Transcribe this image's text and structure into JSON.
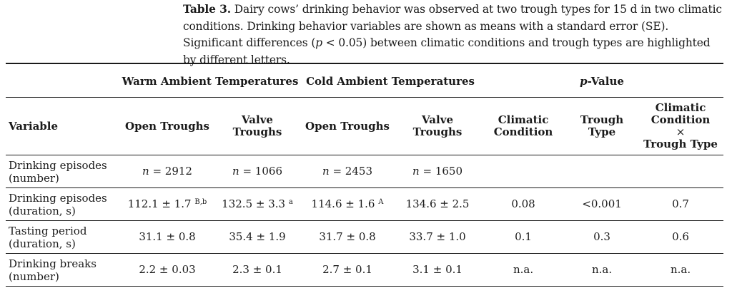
{
  "caption": {
    "label": "Table 3.",
    "text_1": " Dairy cows’ drinking behavior was observed at two trough types for 15 d in two climatic conditions. Drinking behavior variables are shown as means with a standard error (SE). Significant differences (",
    "p_symbol": "p",
    "text_2": " < 0.05) between climatic conditions and trough types are highlighted by different letters."
  },
  "header": {
    "group_warm": "Warm Ambient Temperatures",
    "group_cold": "Cold Ambient Temperatures",
    "group_p_symbol": "p",
    "group_p_rest": "-Value",
    "variable": "Variable",
    "open_troughs": "Open Troughs",
    "valve_troughs": "Valve Troughs",
    "climatic_condition": "Climatic Condition",
    "trough_type": "Trough Type",
    "interaction_1": "Climatic Condition",
    "interaction_x": "×",
    "interaction_2": "Trough Type"
  },
  "rows": [
    {
      "variable": "Drinking episodes (number)",
      "warm_open_n": "n",
      "warm_open": " = 2912",
      "warm_valve_n": "n",
      "warm_valve": " = 1066",
      "cold_open_n": "n",
      "cold_open": " = 2453",
      "cold_valve_n": "n",
      "cold_valve": " = 1650",
      "p_climatic": "",
      "p_trough": "",
      "p_interaction": ""
    },
    {
      "variable": "Drinking episodes (duration, s)",
      "warm_open": "112.1 ± 1.7",
      "warm_open_sup": "B,b",
      "warm_valve": "132.5 ± 3.3",
      "warm_valve_sup": "a",
      "cold_open": "114.6 ± 1.6",
      "cold_open_sup": "A",
      "cold_valve": "134.6 ± 2.5",
      "p_climatic": "0.08",
      "p_trough": "<0.001",
      "p_interaction": "0.7"
    },
    {
      "variable": "Tasting period (duration, s)",
      "warm_open": "31.1 ± 0.8",
      "warm_valve": "35.4 ± 1.9",
      "cold_open": "31.7 ± 0.8",
      "cold_valve": "33.7 ± 1.0",
      "p_climatic": "0.1",
      "p_trough": "0.3",
      "p_interaction": "0.6"
    },
    {
      "variable": "Drinking breaks (number)",
      "warm_open": "2.2 ± 0.03",
      "warm_valve": "2.3 ± 0.1",
      "cold_open": "2.7 ± 0.1",
      "cold_valve": "3.1 ± 0.1",
      "p_climatic": "n.a.",
      "p_trough": "n.a.",
      "p_interaction": "n.a."
    }
  ]
}
